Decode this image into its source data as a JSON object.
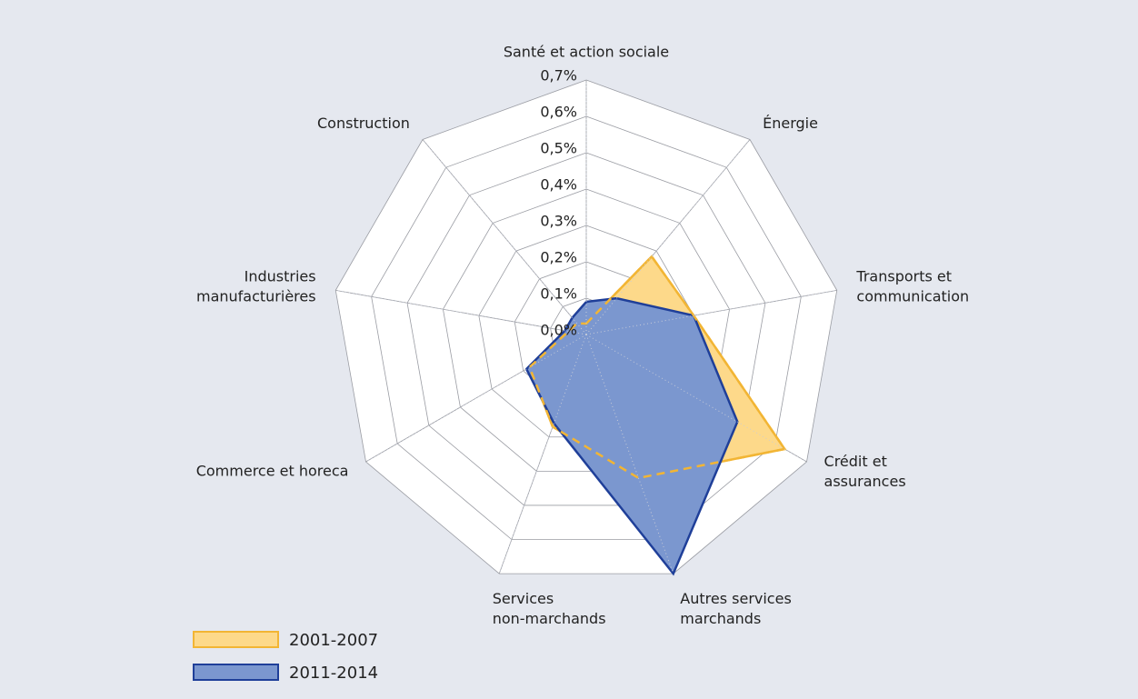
{
  "chart_data": {
    "type": "radar",
    "categories": [
      "Santé et action sociale",
      "Énergie",
      "Transports et\ncommunication",
      "Crédit et\nassurances",
      "Autres services\nmarchands",
      "Services\nnon-marchands",
      "Commerce et horeca",
      "Industries\nmanufacturières",
      "Construction"
    ],
    "series": [
      {
        "name": "2001-2007",
        "color": "#f2b534",
        "fill": "#fdd98a",
        "values": [
          0.03,
          0.28,
          0.3,
          0.63,
          0.42,
          0.27,
          0.18,
          0.05,
          0.04
        ]
      },
      {
        "name": "2011-2014",
        "color": "#1f3f99",
        "fill": "#7b97cf",
        "values": [
          0.09,
          0.13,
          0.3,
          0.48,
          0.7,
          0.26,
          0.19,
          0.06,
          0.06
        ]
      }
    ],
    "ylim": [
      0,
      0.7
    ],
    "yticks": [
      {
        "value": 0,
        "label": "0,0%"
      },
      {
        "value": 0.1,
        "label": "0,1%"
      },
      {
        "value": 0.2,
        "label": "0,2%"
      },
      {
        "value": 0.3,
        "label": "0,3%"
      },
      {
        "value": 0.4,
        "label": "0,4%"
      },
      {
        "value": 0.5,
        "label": "0,5%"
      },
      {
        "value": 0.6,
        "label": "0,6%"
      },
      {
        "value": 0.7,
        "label": "0,7%"
      }
    ],
    "grid": true,
    "legend": "bottom-left"
  }
}
